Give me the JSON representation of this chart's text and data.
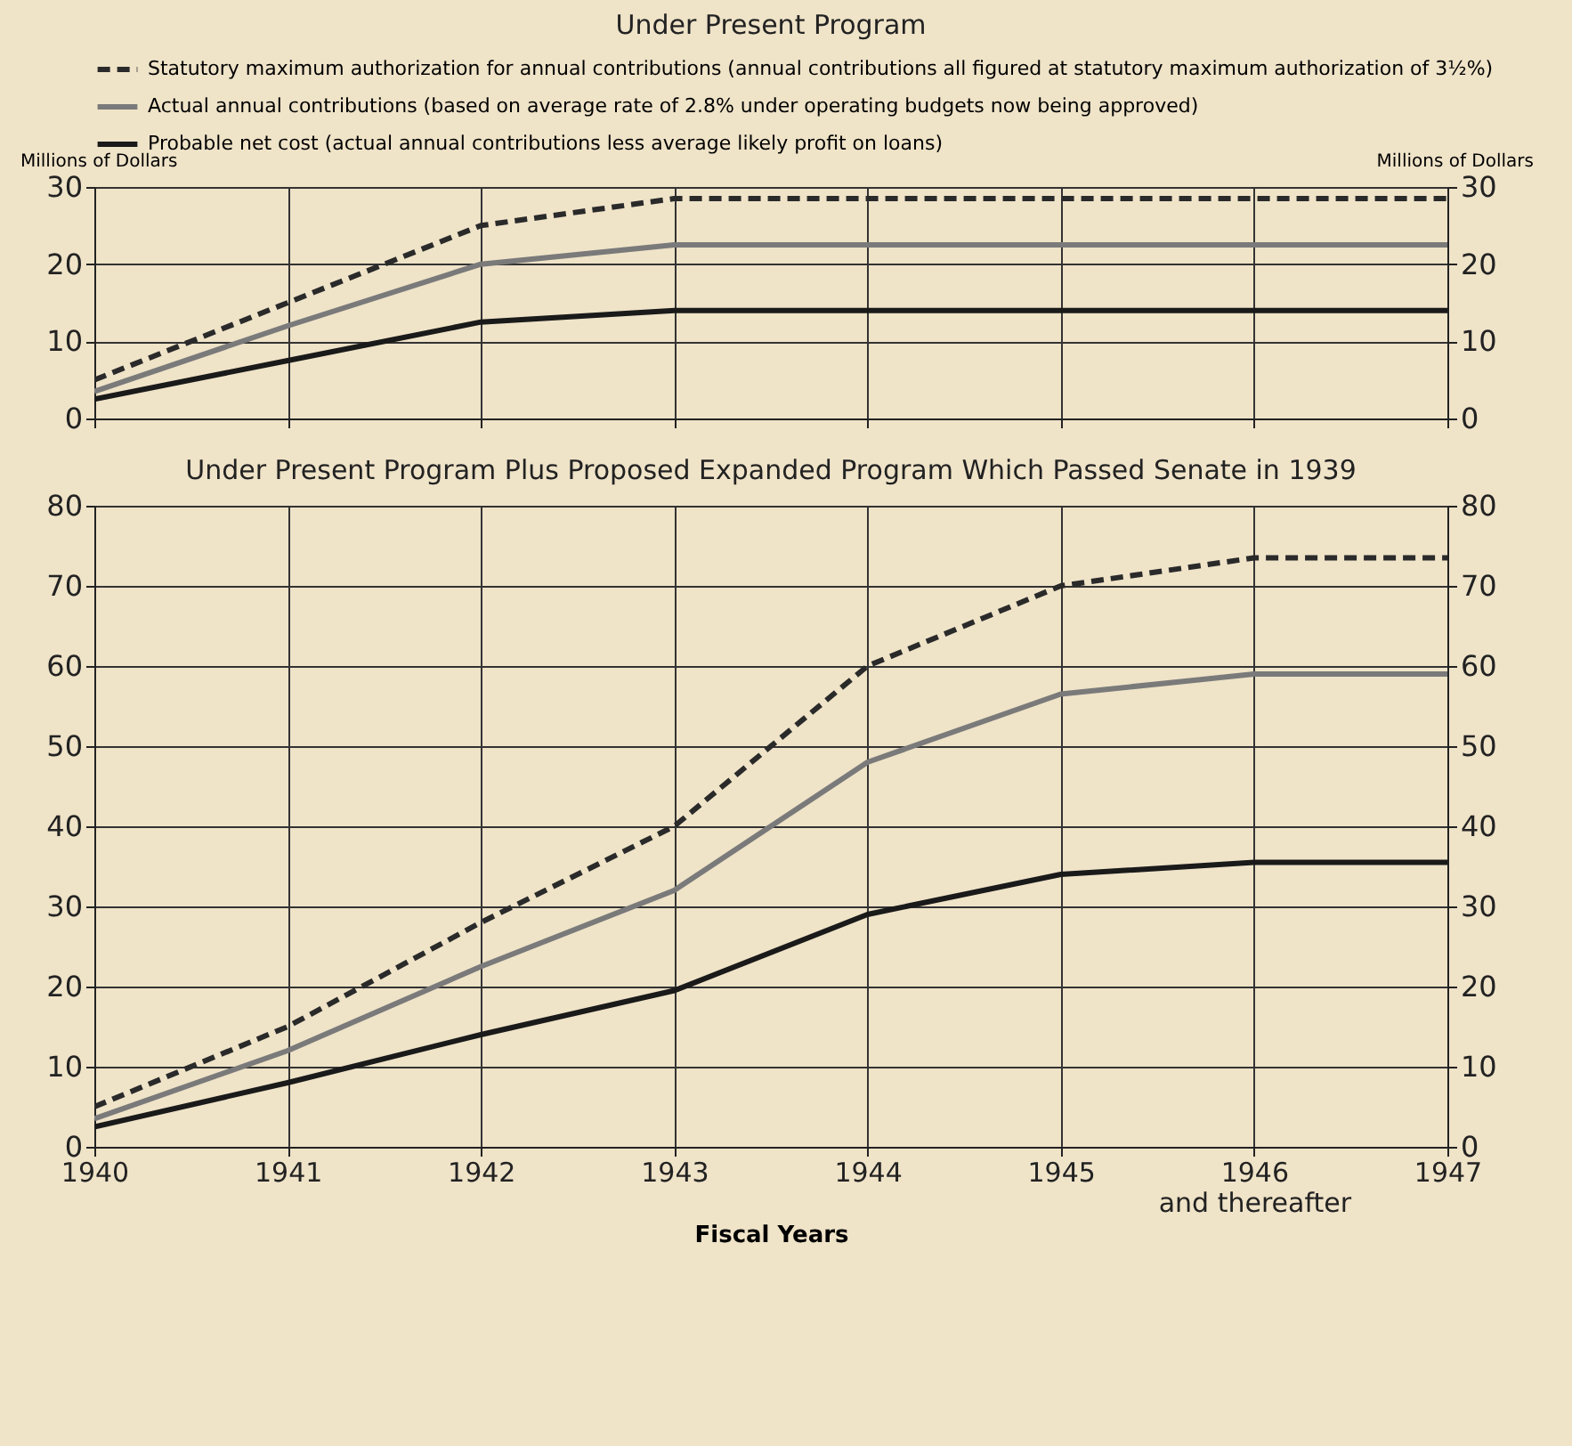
{
  "chart_data": [
    {
      "type": "line",
      "title": "Under Present Program",
      "ylabel": "Millions of Dollars",
      "y2label": "Millions of Dollars",
      "xlim": [
        1940,
        1947
      ],
      "xticks": [
        1940,
        1941,
        1942,
        1943,
        1944,
        1945,
        1946,
        1947
      ],
      "ylim": [
        0,
        30
      ],
      "yticks": [
        0,
        10,
        20,
        30
      ],
      "y2lim": [
        0,
        30
      ],
      "y2ticks": [
        0,
        10,
        20,
        30
      ],
      "tick_labels": "y",
      "grid": true,
      "legend": "top",
      "series": [
        {
          "name": "Statutory maximum authorization for annual contributions (annual contributions all figured at statutory maximum authorization of 3½%)",
          "color": "#2a2a2a",
          "line_style": "dashed",
          "x": [
            1940,
            1941,
            1942,
            1943,
            1947
          ],
          "values": [
            5,
            15,
            25,
            28.5,
            28.5
          ]
        },
        {
          "name": "Actual annual contributions (based on average rate of 2.8% under operating budgets now being approved)",
          "color": "#7a7a7a",
          "line_style": "solid",
          "x": [
            1940,
            1941,
            1942,
            1943,
            1947
          ],
          "values": [
            3.5,
            12,
            20,
            22.5,
            22.5
          ]
        },
        {
          "name": "Probable net cost (actual annual contributions less average likely profit on loans)",
          "color": "#1a1a1a",
          "line_style": "solid",
          "x": [
            1940,
            1941,
            1942,
            1943,
            1947
          ],
          "values": [
            2.5,
            7.5,
            12.5,
            14,
            14
          ]
        }
      ]
    },
    {
      "type": "line",
      "title": "Under Present Program Plus Proposed Expanded Program Which Passed Senate in 1939",
      "xlabel": "Fiscal Years",
      "xlim": [
        1940,
        1947
      ],
      "xticks": [
        1940,
        1941,
        1942,
        1943,
        1944,
        1945,
        {
          "value": 1946,
          "label": "1946\nand thereafter"
        },
        1947
      ],
      "ylim": [
        0,
        80
      ],
      "yticks": [
        0,
        10,
        20,
        30,
        40,
        50,
        60,
        70,
        80
      ],
      "y2lim": [
        0,
        80
      ],
      "y2ticks": [
        0,
        10,
        20,
        30,
        40,
        50,
        60,
        70,
        80
      ],
      "grid": true,
      "series": [
        {
          "color": "#2a2a2a",
          "line_style": "dashed",
          "x": [
            1940,
            1941,
            1942,
            1943,
            1944,
            1945,
            1946,
            1947
          ],
          "values": [
            5,
            15,
            28,
            40,
            60,
            70,
            73.5,
            73.5
          ]
        },
        {
          "color": "#7a7a7a",
          "line_style": "solid",
          "x": [
            1940,
            1941,
            1942,
            1943,
            1944,
            1945,
            1946,
            1947
          ],
          "values": [
            3.5,
            12,
            22.5,
            32,
            48,
            56.5,
            59,
            59
          ]
        },
        {
          "color": "#1a1a1a",
          "line_style": "solid",
          "x": [
            1940,
            1941,
            1942,
            1943,
            1944,
            1945,
            1946,
            1947
          ],
          "values": [
            2.5,
            8,
            14,
            19.5,
            29,
            34,
            35.5,
            35.5
          ]
        }
      ]
    }
  ]
}
